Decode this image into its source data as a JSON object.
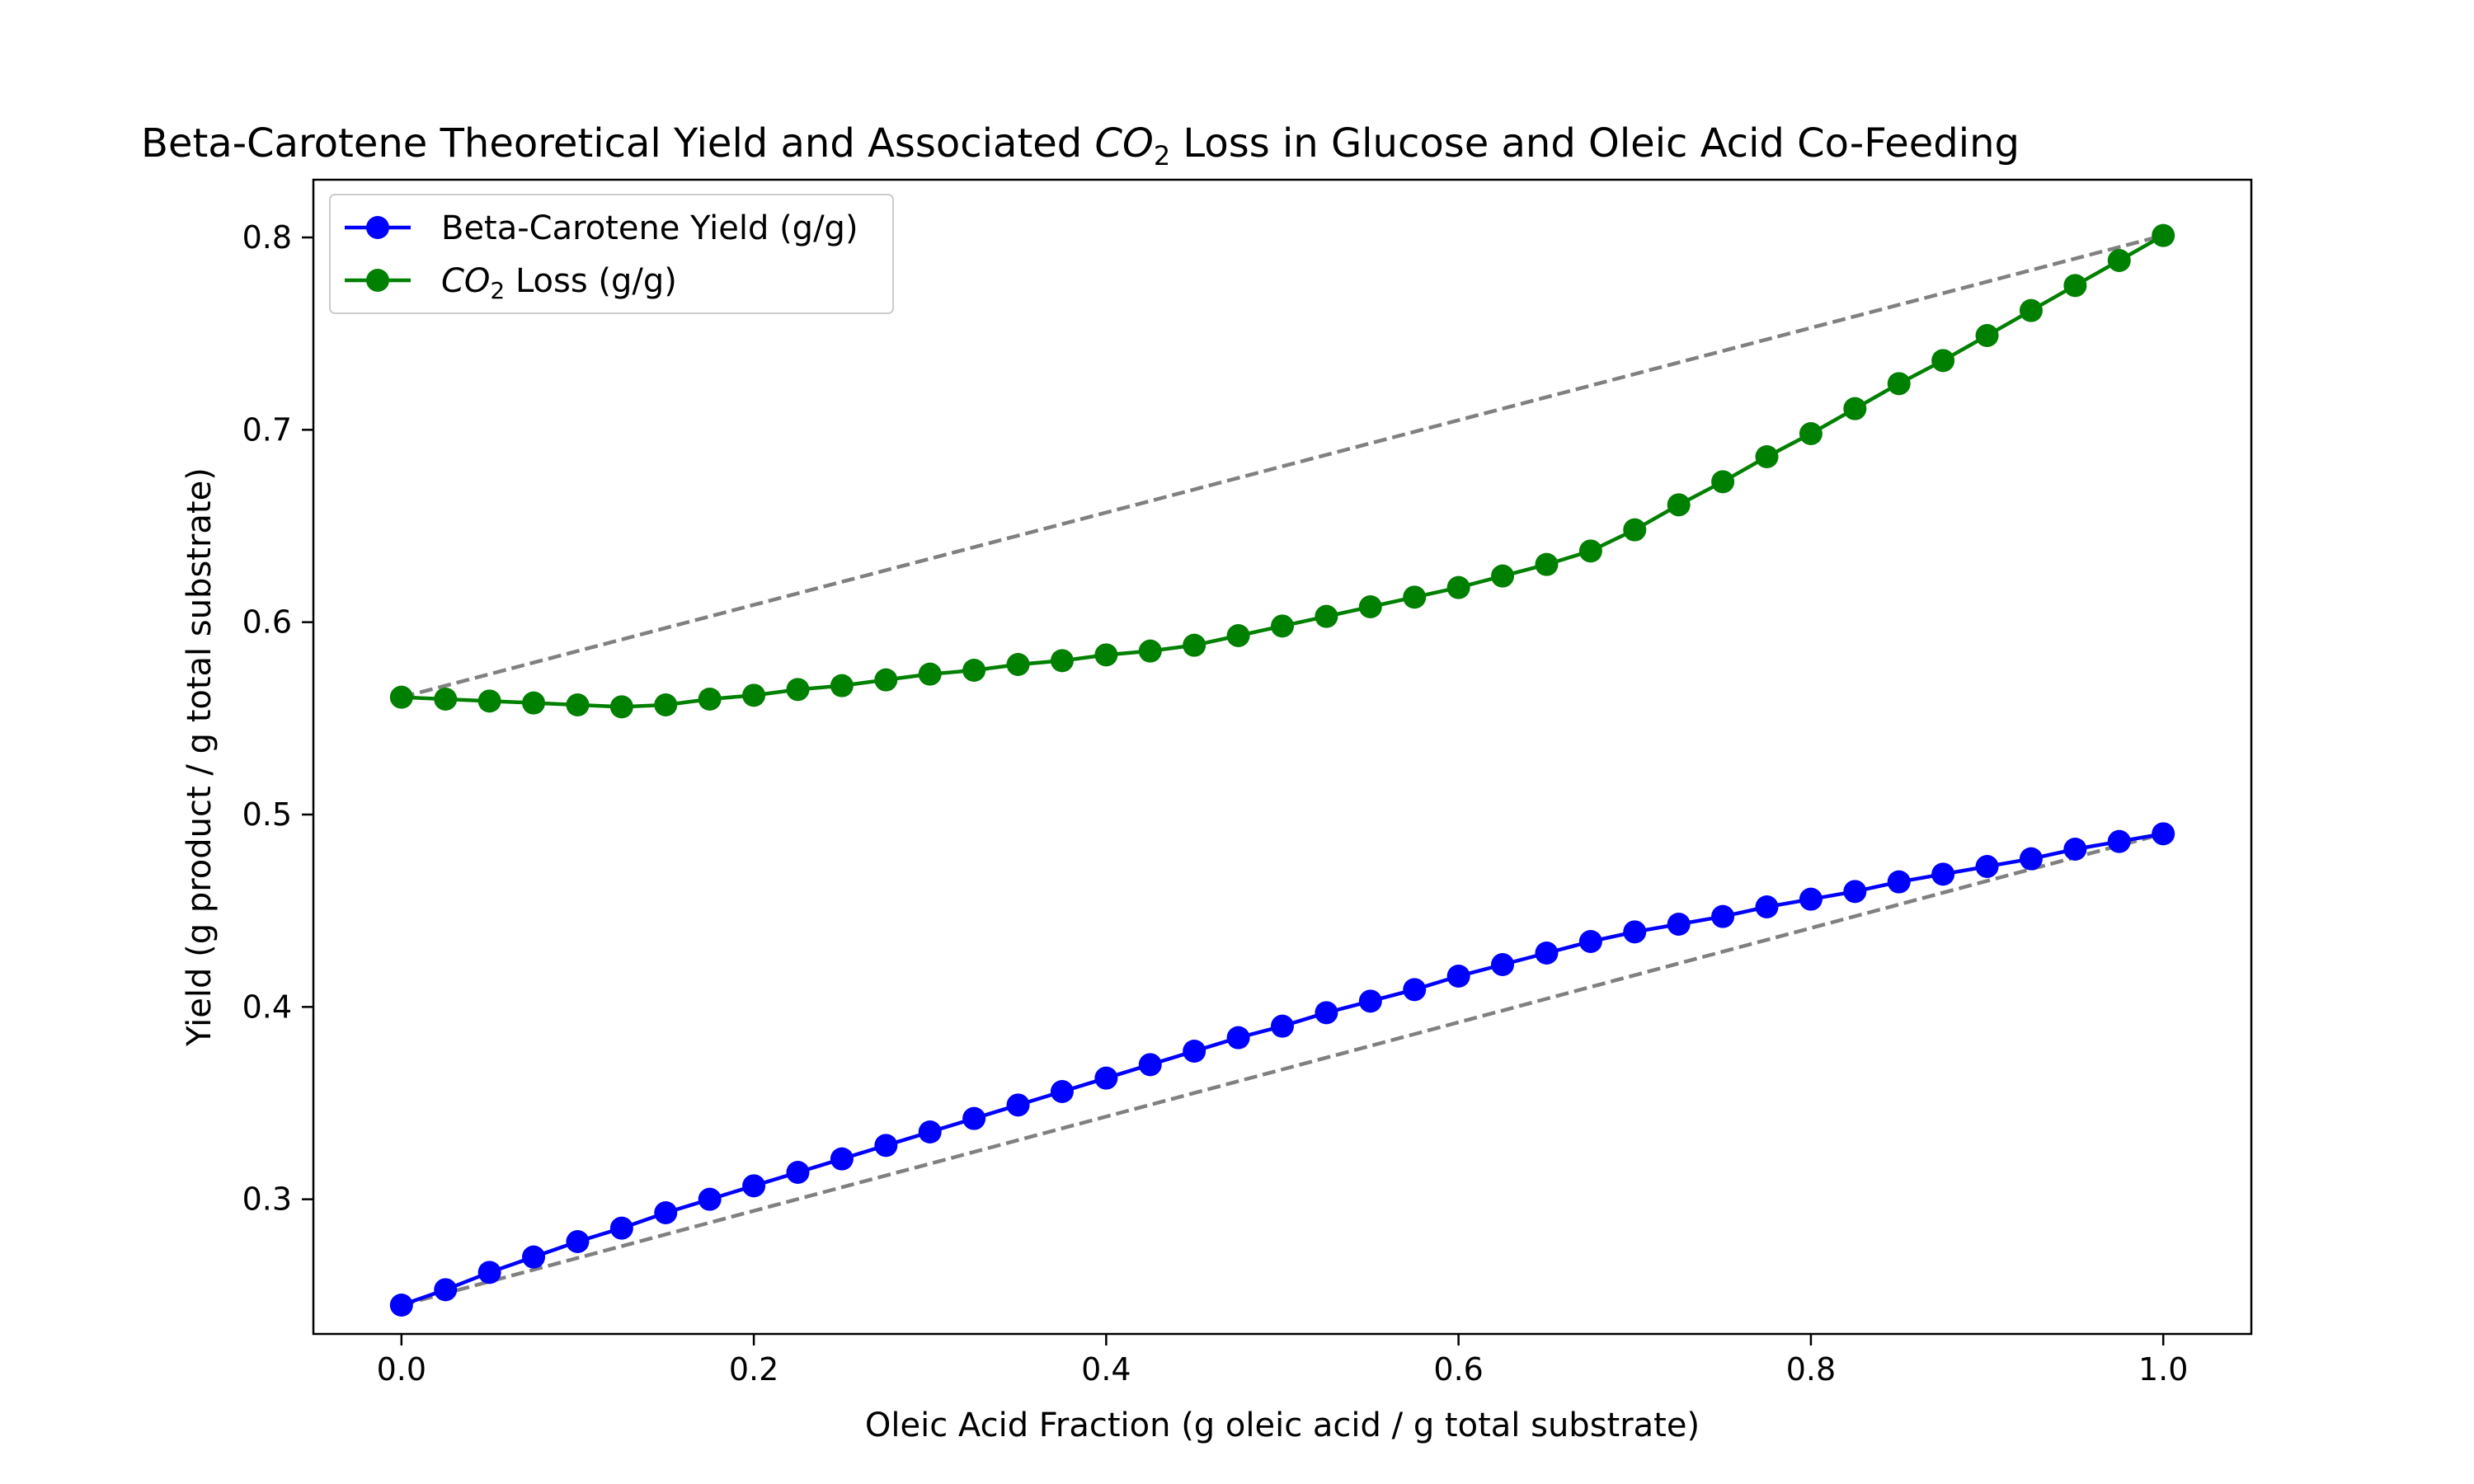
{
  "chart_data": {
    "type": "line",
    "title": {
      "prefix": "Beta-Carotene Theoretical Yield and Associated ",
      "co2_main": "CO",
      "co2_sub": "2",
      "suffix": " Loss in Glucose and Oleic Acid Co-Feeding"
    },
    "xlabel": "Oleic Acid Fraction (g oleic acid / g total substrate)",
    "ylabel": "Yield (g product / g total substrate)",
    "xlim": [
      -0.05,
      1.05
    ],
    "ylim": [
      0.23,
      0.83
    ],
    "xticks": [
      0.0,
      0.2,
      0.4,
      0.6,
      0.8,
      1.0
    ],
    "xtick_labels": [
      "0.0",
      "0.2",
      "0.4",
      "0.6",
      "0.8",
      "1.0"
    ],
    "yticks": [
      0.3,
      0.4,
      0.5,
      0.6,
      0.7,
      0.8
    ],
    "ytick_labels": [
      "0.3",
      "0.4",
      "0.5",
      "0.6",
      "0.7",
      "0.8"
    ],
    "grid": false,
    "legend_position": "top-left",
    "x": [
      0.0,
      0.025,
      0.05,
      0.075,
      0.1,
      0.125,
      0.15,
      0.175,
      0.2,
      0.225,
      0.25,
      0.275,
      0.3,
      0.325,
      0.35,
      0.375,
      0.4,
      0.425,
      0.45,
      0.475,
      0.5,
      0.525,
      0.55,
      0.575,
      0.6,
      0.625,
      0.65,
      0.675,
      0.7,
      0.725,
      0.75,
      0.775,
      0.8,
      0.825,
      0.85,
      0.875,
      0.9,
      0.925,
      0.95,
      0.975,
      1.0
    ],
    "series": [
      {
        "name": "Beta-Carotene Yield (g/g)",
        "legend_main": "Beta-Carotene Yield (g/g)",
        "legend_sub": "",
        "legend_suffix": "",
        "color": "#0000ff",
        "values": [
          0.245,
          0.253,
          0.262,
          0.27,
          0.278,
          0.285,
          0.293,
          0.3,
          0.307,
          0.314,
          0.321,
          0.328,
          0.335,
          0.342,
          0.349,
          0.356,
          0.363,
          0.37,
          0.377,
          0.384,
          0.39,
          0.397,
          0.403,
          0.409,
          0.416,
          0.422,
          0.428,
          0.434,
          0.439,
          0.443,
          0.447,
          0.452,
          0.456,
          0.46,
          0.465,
          0.469,
          0.473,
          0.477,
          0.482,
          0.486,
          0.49
        ]
      },
      {
        "name": "CO2 Loss (g/g)",
        "legend_main": "CO",
        "legend_sub": "2",
        "legend_suffix": " Loss (g/g)",
        "color": "#008000",
        "values": [
          0.561,
          0.56,
          0.559,
          0.558,
          0.557,
          0.556,
          0.557,
          0.56,
          0.562,
          0.565,
          0.567,
          0.57,
          0.573,
          0.575,
          0.578,
          0.58,
          0.583,
          0.585,
          0.588,
          0.593,
          0.598,
          0.603,
          0.608,
          0.613,
          0.618,
          0.624,
          0.63,
          0.637,
          0.648,
          0.661,
          0.673,
          0.686,
          0.698,
          0.711,
          0.724,
          0.736,
          0.749,
          0.762,
          0.775,
          0.788,
          0.801
        ]
      }
    ],
    "reference_lines": [
      {
        "name": "beta-carotene-linear-reference",
        "x": [
          0.0,
          1.0
        ],
        "y": [
          0.245,
          0.49
        ],
        "color": "#808080",
        "style": "dashed"
      },
      {
        "name": "co2-linear-reference",
        "x": [
          0.0,
          1.0
        ],
        "y": [
          0.561,
          0.801
        ],
        "color": "#808080",
        "style": "dashed"
      }
    ]
  }
}
